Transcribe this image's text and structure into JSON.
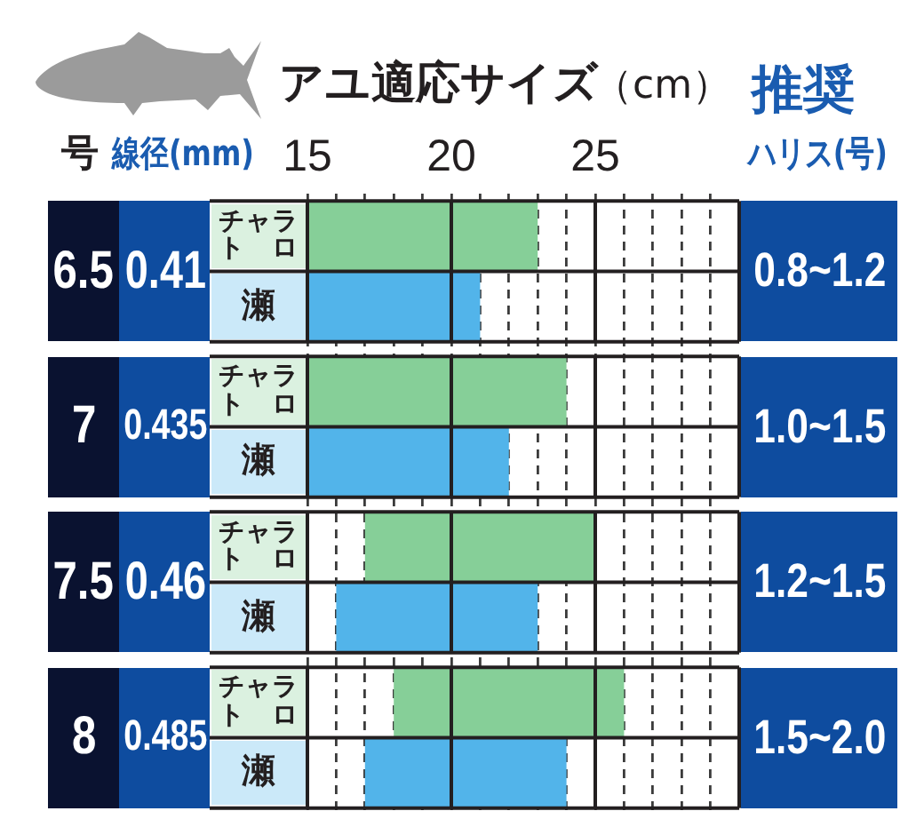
{
  "chart_data": {
    "type": "bar",
    "orientation": "horizontal",
    "title": "アユ適応サイズ",
    "xlabel": "（cm）",
    "ylabel": "号",
    "categories": [
      "6.5",
      "7",
      "7.5",
      "8"
    ],
    "series": [
      {
        "name": "チャラトロ",
        "color": "#86cf98",
        "base": [
          15,
          15,
          17,
          18
        ],
        "values": [
          8,
          9,
          8,
          8
        ]
      },
      {
        "name": "瀬",
        "color": "#52b4ea",
        "base": [
          15,
          15,
          16,
          17
        ],
        "values": [
          6,
          7,
          7,
          7
        ]
      }
    ],
    "xlim": [
      15,
      30
    ],
    "xticks": [
      15,
      {
        "value": 16,
        "label": null
      },
      {
        "value": 17,
        "label": null
      },
      {
        "value": 18,
        "label": null
      },
      {
        "value": 19,
        "label": null
      },
      20,
      {
        "value": 21,
        "label": null
      },
      {
        "value": 22,
        "label": null
      },
      {
        "value": 23,
        "label": null
      },
      {
        "value": 24,
        "label": null
      },
      25,
      {
        "value": 26,
        "label": null
      },
      {
        "value": 27,
        "label": null
      },
      {
        "value": 28,
        "label": null
      },
      {
        "value": 29,
        "label": null
      }
    ],
    "grid": true,
    "annotations": [
      "線径(mm)",
      "推奨",
      "ハリス(号)",
      "0.41",
      "0.8~1.2",
      "0.435",
      "1.0~1.5",
      "0.46",
      "1.2~1.5",
      "0.485",
      "1.5~2.0"
    ]
  }
}
